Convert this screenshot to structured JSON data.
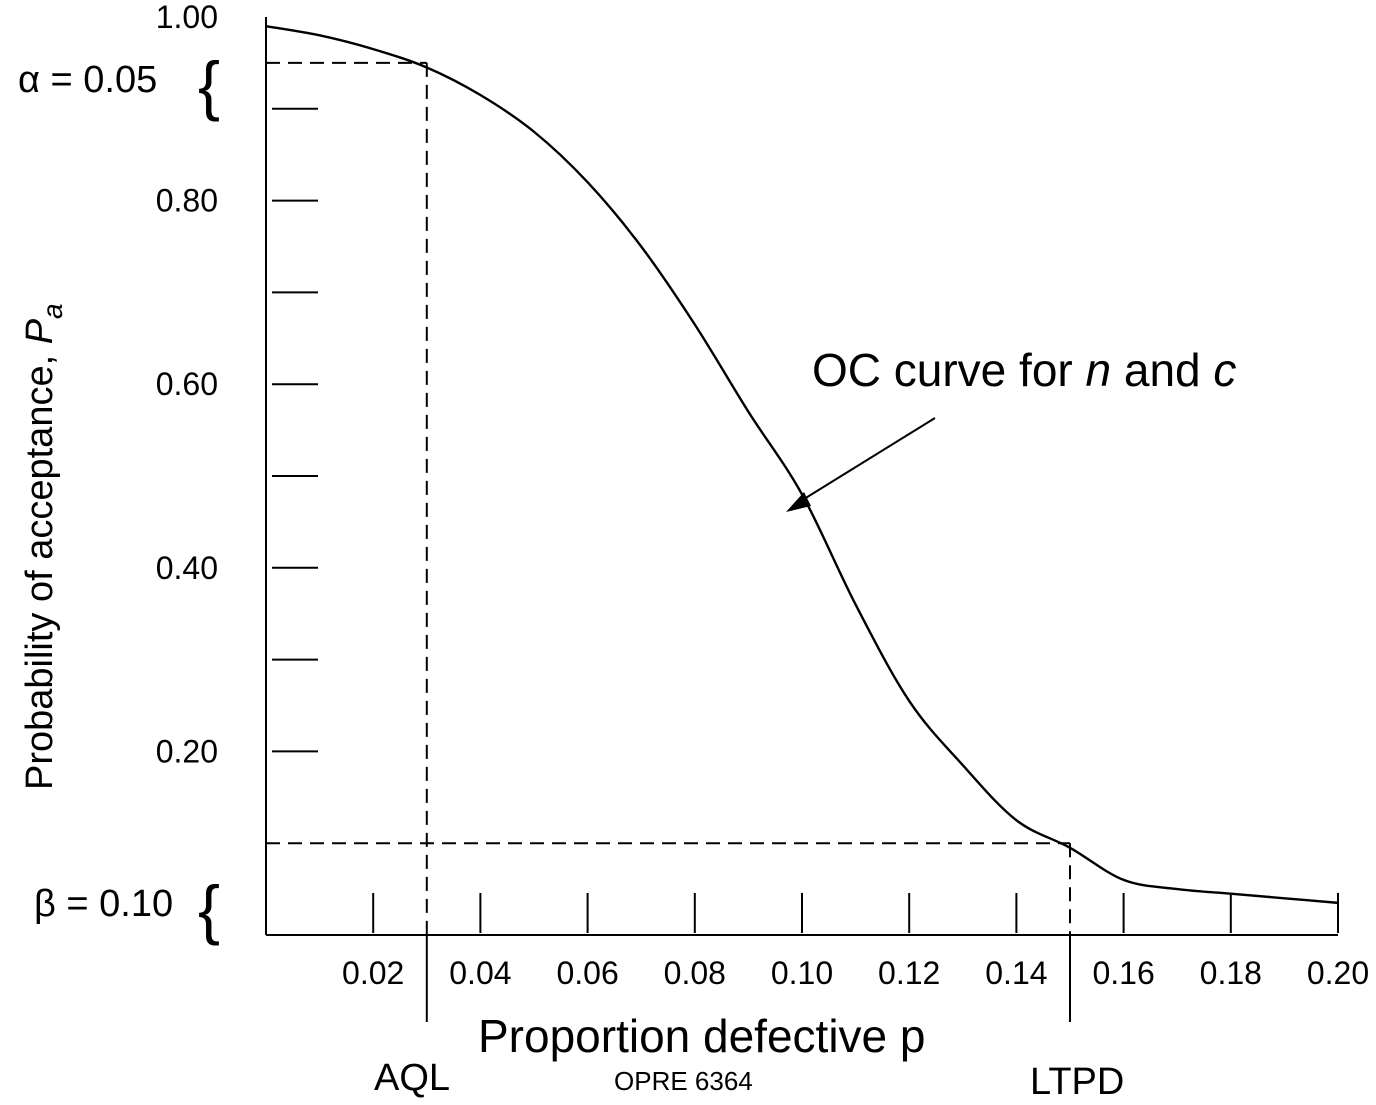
{
  "chart_data": {
    "type": "line",
    "title": "",
    "xlabel": "Proportion defective p",
    "ylabel": "Probability of acceptance, ",
    "ylabel_italic": "P",
    "ylabel_sub": "a",
    "xlim": [
      0,
      0.2
    ],
    "ylim": [
      0,
      1.0
    ],
    "x_tick_labels": [
      "0.02",
      "0.04",
      "0.06",
      "0.08",
      "0.10",
      "0.12",
      "0.14",
      "0.16",
      "0.18",
      "0.20"
    ],
    "x_tick_values": [
      0.02,
      0.04,
      0.06,
      0.08,
      0.1,
      0.12,
      0.14,
      0.16,
      0.18,
      0.2
    ],
    "y_tick_labels": [
      "1.00",
      "0.80",
      "0.60",
      "0.40",
      "0.20"
    ],
    "y_tick_values": [
      1.0,
      0.8,
      0.6,
      0.4,
      0.2
    ],
    "y_minor_ticks": [
      0.9,
      0.7,
      0.5,
      0.3
    ],
    "x_minor_ticks": [],
    "grid": false,
    "series": [
      {
        "x": [
          0.0,
          0.01,
          0.02,
          0.03,
          0.04,
          0.05,
          0.06,
          0.07,
          0.08,
          0.09,
          0.1,
          0.11,
          0.12,
          0.13,
          0.14,
          0.15,
          0.16,
          0.17,
          0.18,
          0.19,
          0.2
        ],
        "y": [
          0.99,
          0.98,
          0.965,
          0.945,
          0.915,
          0.875,
          0.82,
          0.75,
          0.665,
          0.57,
          0.48,
          0.36,
          0.255,
          0.185,
          0.125,
          0.095,
          0.06,
          0.05,
          0.045,
          0.04,
          0.035
        ]
      }
    ],
    "reference_lines": {
      "aql_x": 0.03,
      "aql_y": 0.95,
      "ltpd_x": 0.15,
      "ltpd_y": 0.1
    },
    "annotations": {
      "alpha": "α = 0.05",
      "beta": "β = 0.10",
      "aql": "AQL",
      "ltpd": "LTPD",
      "oc_prefix": "OC curve for ",
      "oc_n": "n",
      "oc_and": " and ",
      "oc_c": "c",
      "footer": "OPRE 6364"
    }
  }
}
